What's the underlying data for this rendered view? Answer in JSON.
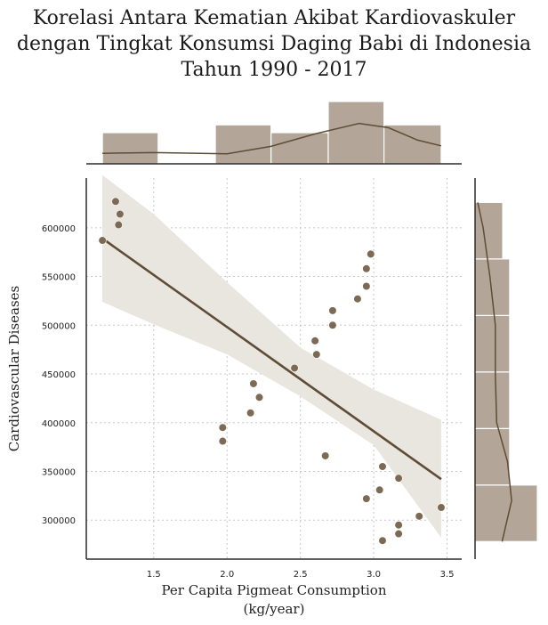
{
  "chart_data": {
    "type": "scatter",
    "title_lines": [
      "Korelasi Antara Kematian Akibat Kardiovaskuler",
      "dengan Tingkat Konsumsi Daging Babi di Indonesia",
      "Tahun 1990 - 2017"
    ],
    "xlabel_lines": [
      "Per Capita Pigmeat Consumption",
      "(kg/year)"
    ],
    "ylabel": "Cardiovascular Diseases",
    "xlim": [
      1.04,
      3.6
    ],
    "ylim": [
      260000,
      651000
    ],
    "xticks": [
      {
        "value": 1.5,
        "label": "1.5"
      },
      {
        "value": 2.0,
        "label": "2.0"
      },
      {
        "value": 2.5,
        "label": "2.5"
      },
      {
        "value": 3.0,
        "label": "3.0"
      },
      {
        "value": 3.5,
        "label": "3.5"
      }
    ],
    "yticks": [
      {
        "value": 300000,
        "label": "300000"
      },
      {
        "value": 350000,
        "label": "350000"
      },
      {
        "value": 400000,
        "label": "400000"
      },
      {
        "value": 450000,
        "label": "450000"
      },
      {
        "value": 500000,
        "label": "500000"
      },
      {
        "value": 550000,
        "label": "550000"
      },
      {
        "value": 600000,
        "label": "600000"
      }
    ],
    "grid": true,
    "points": [
      {
        "x": 1.15,
        "y": 587000
      },
      {
        "x": 1.24,
        "y": 627000
      },
      {
        "x": 1.27,
        "y": 614000
      },
      {
        "x": 1.26,
        "y": 603000
      },
      {
        "x": 1.97,
        "y": 395000
      },
      {
        "x": 1.97,
        "y": 381000
      },
      {
        "x": 2.16,
        "y": 410000
      },
      {
        "x": 2.18,
        "y": 440000
      },
      {
        "x": 2.22,
        "y": 426000
      },
      {
        "x": 2.46,
        "y": 456000
      },
      {
        "x": 2.6,
        "y": 484000
      },
      {
        "x": 2.61,
        "y": 470000
      },
      {
        "x": 2.67,
        "y": 366000
      },
      {
        "x": 2.72,
        "y": 515000
      },
      {
        "x": 2.72,
        "y": 500000
      },
      {
        "x": 2.89,
        "y": 527000
      },
      {
        "x": 2.95,
        "y": 558000
      },
      {
        "x": 2.95,
        "y": 540000
      },
      {
        "x": 2.98,
        "y": 573000
      },
      {
        "x": 2.95,
        "y": 322000
      },
      {
        "x": 3.04,
        "y": 331000
      },
      {
        "x": 3.06,
        "y": 355000
      },
      {
        "x": 3.06,
        "y": 279000
      },
      {
        "x": 3.17,
        "y": 343000
      },
      {
        "x": 3.17,
        "y": 295000
      },
      {
        "x": 3.17,
        "y": 286000
      },
      {
        "x": 3.31,
        "y": 304000
      },
      {
        "x": 3.46,
        "y": 313000
      }
    ],
    "regression": {
      "x": [
        1.15,
        3.46
      ],
      "y": [
        589000,
        342000
      ]
    },
    "confidence_band": {
      "x": [
        1.15,
        1.5,
        2.0,
        2.5,
        3.0,
        3.46
      ],
      "lower": [
        524000,
        501000,
        470000,
        427000,
        377000,
        282000
      ],
      "upper": [
        654000,
        614000,
        544000,
        477000,
        434000,
        403000
      ]
    },
    "x_histogram": {
      "bin_edges": [
        1.15,
        1.53,
        1.92,
        2.3,
        2.69,
        3.07,
        3.46
      ],
      "counts": [
        4,
        0,
        5,
        4,
        8,
        5
      ]
    },
    "x_kde": {
      "x": [
        1.15,
        1.5,
        2.0,
        2.3,
        2.6,
        2.9,
        3.1,
        3.3,
        3.46
      ],
      "density": [
        0.42,
        0.45,
        0.4,
        0.7,
        1.2,
        1.62,
        1.45,
        0.95,
        0.72
      ]
    },
    "y_histogram": {
      "bin_edges": [
        278000,
        336000,
        394000,
        452000,
        510000,
        568000,
        626000
      ],
      "counts": [
        9,
        5,
        5,
        5,
        5,
        4
      ]
    },
    "y_kde": {
      "y": [
        278000,
        320000,
        360000,
        400000,
        450000,
        500000,
        550000,
        600000,
        626000
      ],
      "density": [
        1.0,
        1.35,
        1.2,
        0.8,
        0.75,
        0.75,
        0.55,
        0.3,
        0.1
      ]
    },
    "colors": {
      "point": "#7d6a55",
      "line": "#5e4c36",
      "band": "#e9e5df",
      "hist": "#b3a698",
      "axis": "#2b2b2b",
      "grid": "#c8c8c8"
    }
  }
}
